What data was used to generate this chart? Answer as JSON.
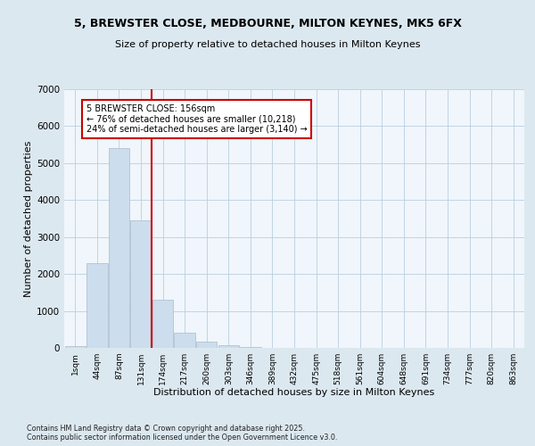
{
  "title_line1": "5, BREWSTER CLOSE, MEDBOURNE, MILTON KEYNES, MK5 6FX",
  "title_line2": "Size of property relative to detached houses in Milton Keynes",
  "xlabel": "Distribution of detached houses by size in Milton Keynes",
  "ylabel": "Number of detached properties",
  "categories": [
    "1sqm",
    "44sqm",
    "87sqm",
    "131sqm",
    "174sqm",
    "217sqm",
    "260sqm",
    "303sqm",
    "346sqm",
    "389sqm",
    "432sqm",
    "475sqm",
    "518sqm",
    "561sqm",
    "604sqm",
    "648sqm",
    "691sqm",
    "734sqm",
    "777sqm",
    "820sqm",
    "863sqm"
  ],
  "values": [
    50,
    2300,
    5400,
    3450,
    1300,
    400,
    170,
    70,
    30,
    10,
    5,
    2,
    0,
    0,
    0,
    0,
    0,
    0,
    0,
    0,
    0
  ],
  "bar_color": "#ccdded",
  "bar_edge_color": "#aabbcc",
  "vline_x_index": 3,
  "vline_color": "#cc0000",
  "annotation_text_line1": "5 BREWSTER CLOSE: 156sqm",
  "annotation_text_line2": "← 76% of detached houses are smaller (10,218)",
  "annotation_text_line3": "24% of semi-detached houses are larger (3,140) →",
  "annotation_box_color": "#cc0000",
  "annotation_fill_color": "#ffffff",
  "ylim": [
    0,
    7000
  ],
  "yticks": [
    0,
    1000,
    2000,
    3000,
    4000,
    5000,
    6000,
    7000
  ],
  "footnote_line1": "Contains HM Land Registry data © Crown copyright and database right 2025.",
  "footnote_line2": "Contains public sector information licensed under the Open Government Licence v3.0.",
  "bg_color": "#dce8f0",
  "plot_bg_color": "#f0f6fb",
  "grid_color": "#b8cfe0"
}
